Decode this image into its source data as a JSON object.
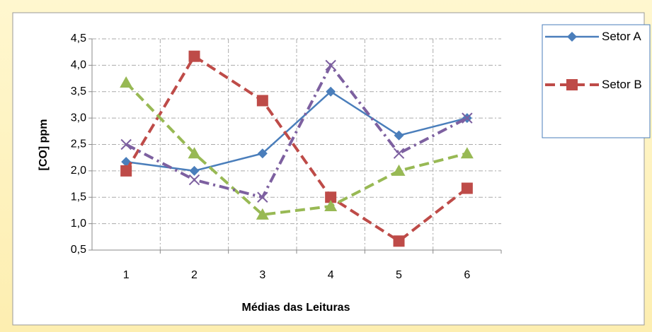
{
  "chart_data": {
    "type": "line",
    "xlabel": "Médias das Leituras",
    "ylabel": "[CO] ppm",
    "categories": [
      "1",
      "2",
      "3",
      "4",
      "5",
      "6"
    ],
    "series": [
      {
        "name": "Setor A",
        "color": "#4a7ebb",
        "marker": "diamond",
        "dash": "solid",
        "values": [
          2.17,
          2.0,
          2.33,
          3.5,
          2.67,
          3.0
        ]
      },
      {
        "name": "Setor B",
        "color": "#be4b48",
        "marker": "square",
        "dash": "dash",
        "values": [
          2.0,
          4.17,
          3.33,
          1.5,
          0.67,
          1.67
        ]
      },
      {
        "color": "#98b954",
        "marker": "triangle",
        "dash": "dash",
        "values": [
          3.67,
          2.33,
          1.17,
          1.33,
          2.0,
          2.33
        ]
      },
      {
        "color": "#7d60a0",
        "marker": "x",
        "dash": "dashdot",
        "values": [
          2.5,
          1.83,
          1.5,
          4.0,
          2.33,
          3.0
        ]
      }
    ],
    "ylim": [
      0.5,
      4.5
    ],
    "yticks": [
      {
        "value": 0.5,
        "label": "0,5"
      },
      {
        "value": 1.0,
        "label": "1,0"
      },
      {
        "value": 1.5,
        "label": "1,5"
      },
      {
        "value": 2.0,
        "label": "2,0"
      },
      {
        "value": 2.5,
        "label": "2,5"
      },
      {
        "value": 3.0,
        "label": "3,0"
      },
      {
        "value": 3.5,
        "label": "3,5"
      },
      {
        "value": 4.0,
        "label": "4,0"
      },
      {
        "value": 4.5,
        "label": "4,5"
      }
    ],
    "grid": true,
    "legend": "top-right"
  }
}
